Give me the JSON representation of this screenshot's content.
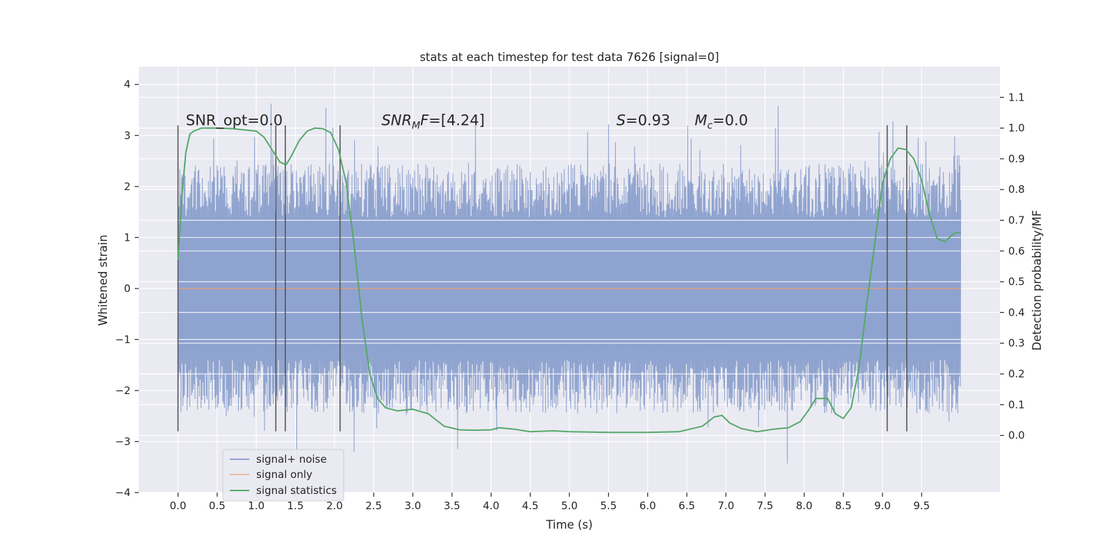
{
  "chart_data": {
    "type": "line",
    "title": "stats at each timestep for test data 7626 [signal=0]",
    "xlabel": "Time (s)",
    "ylabel": "Whitened strain",
    "y2label": "Detection probability/MF",
    "xlim": [
      -0.5,
      10.5
    ],
    "ylim": [
      -4.0,
      4.35
    ],
    "y2lim": [
      -0.186,
      1.2
    ],
    "x_ticks": [
      0.0,
      0.5,
      1.0,
      1.5,
      2.0,
      2.5,
      3.0,
      3.5,
      4.0,
      4.5,
      5.0,
      5.5,
      6.0,
      6.5,
      7.0,
      7.5,
      8.0,
      8.5,
      9.0,
      9.5
    ],
    "x_tick_labels": [
      "0.0",
      "0.5",
      "1.0",
      "1.5",
      "2.0",
      "2.5",
      "3.0",
      "3.5",
      "4.0",
      "4.5",
      "5.0",
      "5.5",
      "6.0",
      "6.5",
      "7.0",
      "7.5",
      "8.0",
      "8.5",
      "9.0",
      "9.5"
    ],
    "y_ticks": [
      4,
      3,
      2,
      1,
      0,
      -1,
      -2,
      -3,
      -4
    ],
    "y_tick_labels": [
      "4",
      "3",
      "2",
      "1",
      "0",
      "−1",
      "−2",
      "−3",
      "−4"
    ],
    "y2_ticks": [
      1.1,
      1.0,
      0.9,
      0.8,
      0.7,
      0.6,
      0.5,
      0.4,
      0.3,
      0.2,
      0.1,
      0.0
    ],
    "y2_tick_labels": [
      "1.1",
      "1.0",
      "0.9",
      "0.8",
      "0.7",
      "0.6",
      "0.5",
      "0.4",
      "0.3",
      "0.2",
      "0.1",
      "0.0"
    ],
    "grid": true,
    "legend_position": "bottom-left",
    "legend": [
      "signal+ noise",
      "signal only",
      "signal statistics"
    ],
    "colors": {
      "noise": "#8fa3cf",
      "signal": "#dd8452",
      "stats": "#55a868",
      "vlines": "#555555",
      "background": "#eaeaf2",
      "grid": "#ffffff"
    },
    "annotations": [
      {
        "id": "snr-opt",
        "text": "SNR_opt=0.0",
        "x": 0.1,
        "y": 3.2
      },
      {
        "id": "snr-mf",
        "prefix": "SNR",
        "sub": "M",
        "suffix": "F=[4.24]",
        "x": 2.6,
        "y": 3.2
      },
      {
        "id": "s-stat",
        "prefix": "S",
        "suffix": "=0.93",
        "x": 5.6,
        "y": 3.2
      },
      {
        "id": "mc",
        "prefix": "M",
        "sub": "c",
        "suffix": "=0.0",
        "x": 6.6,
        "y": 3.2
      }
    ],
    "vlines": {
      "x": [
        0.0,
        1.25,
        1.37,
        2.07,
        9.06,
        9.31
      ],
      "ymin": -2.8,
      "ymax": 3.2
    },
    "series": [
      {
        "name": "signal+ noise",
        "axis": "left",
        "kind": "dense-noise",
        "x_range": [
          0.0,
          10.0
        ],
        "envelope": 1.4,
        "peak_range": [
          -3.5,
          4.05
        ]
      },
      {
        "name": "signal only",
        "axis": "left",
        "x": [
          0.0,
          10.0
        ],
        "y": [
          0.0,
          0.0
        ]
      },
      {
        "name": "signal statistics",
        "axis": "right",
        "x": [
          0.0,
          0.05,
          0.1,
          0.15,
          0.2,
          0.3,
          0.5,
          0.7,
          1.0,
          1.1,
          1.2,
          1.3,
          1.38,
          1.45,
          1.55,
          1.65,
          1.75,
          1.85,
          1.95,
          2.05,
          2.15,
          2.25,
          2.35,
          2.45,
          2.55,
          2.65,
          2.8,
          3.0,
          3.2,
          3.4,
          3.6,
          3.8,
          4.0,
          4.1,
          4.3,
          4.5,
          4.8,
          5.0,
          5.5,
          6.0,
          6.4,
          6.7,
          6.85,
          6.95,
          7.05,
          7.2,
          7.4,
          7.6,
          7.8,
          7.95,
          8.05,
          8.15,
          8.3,
          8.4,
          8.5,
          8.6,
          8.7,
          8.8,
          8.9,
          9.0,
          9.1,
          9.2,
          9.3,
          9.4,
          9.5,
          9.6,
          9.7,
          9.8,
          9.9,
          9.95,
          10.0
        ],
        "y": [
          0.57,
          0.78,
          0.92,
          0.98,
          0.99,
          1.0,
          1.0,
          0.998,
          0.99,
          0.97,
          0.93,
          0.89,
          0.88,
          0.91,
          0.96,
          0.99,
          1.0,
          0.998,
          0.985,
          0.93,
          0.82,
          0.62,
          0.38,
          0.2,
          0.12,
          0.09,
          0.08,
          0.085,
          0.07,
          0.03,
          0.018,
          0.017,
          0.018,
          0.025,
          0.02,
          0.012,
          0.015,
          0.012,
          0.01,
          0.01,
          0.012,
          0.03,
          0.06,
          0.065,
          0.04,
          0.022,
          0.012,
          0.02,
          0.025,
          0.045,
          0.08,
          0.12,
          0.12,
          0.07,
          0.055,
          0.09,
          0.22,
          0.43,
          0.62,
          0.82,
          0.9,
          0.935,
          0.93,
          0.9,
          0.83,
          0.72,
          0.64,
          0.63,
          0.655,
          0.66,
          0.66
        ]
      }
    ]
  }
}
